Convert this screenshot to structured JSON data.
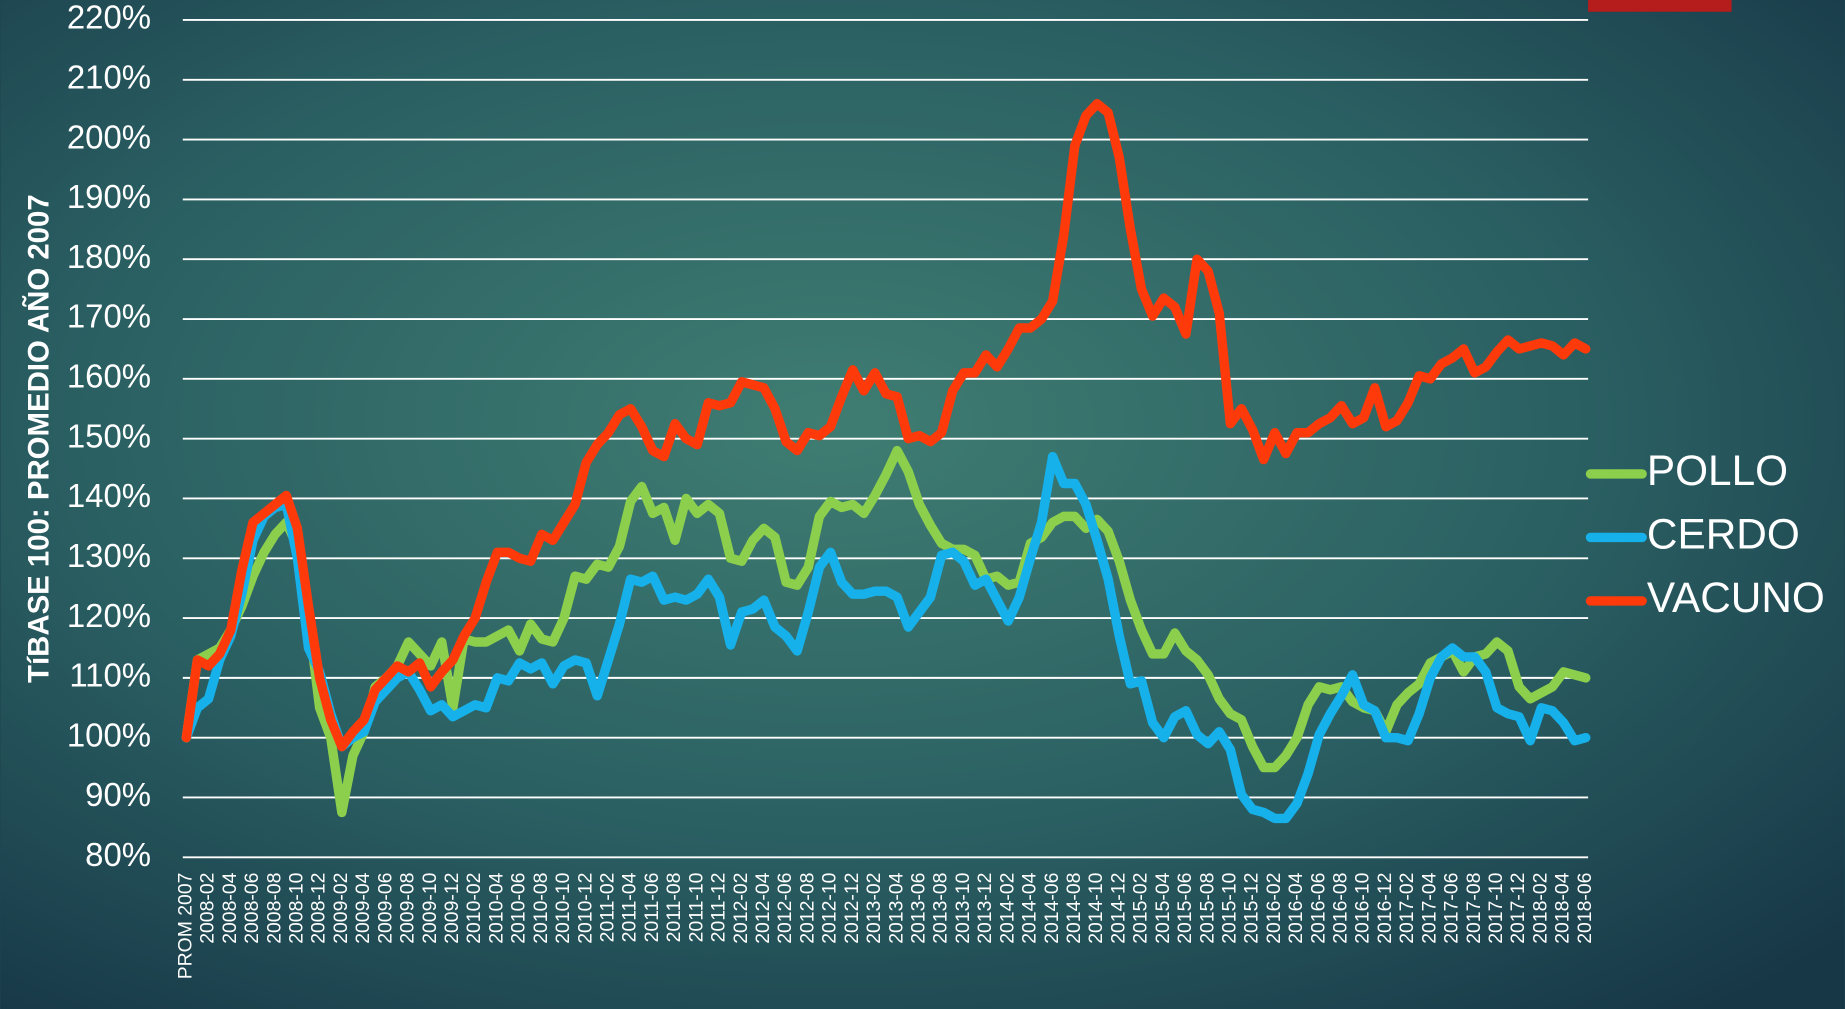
{
  "chart_data": {
    "type": "line",
    "ylabel": "TíBASE 100: PROMEDIO AÑO 2007",
    "categories": [
      "PROM 2007",
      null,
      "2008-02",
      null,
      "2008-04",
      null,
      "2008-06",
      null,
      "2008-08",
      null,
      "2008-10",
      null,
      "2008-12",
      null,
      "2009-02",
      null,
      "2009-04",
      null,
      "2009-06",
      null,
      "2009-08",
      null,
      "2009-10",
      null,
      "2009-12",
      null,
      "2010-02",
      null,
      "2010-04",
      null,
      "2010-06",
      null,
      "2010-08",
      null,
      "2010-10",
      null,
      "2010-12",
      null,
      "2011-02",
      null,
      "2011-04",
      null,
      "2011-06",
      null,
      "2011-08",
      null,
      "2011-10",
      null,
      "2011-12",
      null,
      "2012-02",
      null,
      "2012-04",
      null,
      "2012-06",
      null,
      "2012-08",
      null,
      "2012-10",
      null,
      "2012-12",
      null,
      "2013-02",
      null,
      "2013-04",
      null,
      "2013-06",
      null,
      "2013-08",
      null,
      "2013-10",
      null,
      "2013-12",
      null,
      "2014-02",
      null,
      "2014-04",
      null,
      "2014-06",
      null,
      "2014-08",
      null,
      "2014-10",
      null,
      "2014-12",
      null,
      "2015-02",
      null,
      "2015-04",
      null,
      "2015-06",
      null,
      "2015-08",
      null,
      "2015-10",
      null,
      "2015-12",
      null,
      "2016-02",
      null,
      "2016-04",
      null,
      "2016-06",
      null,
      "2016-08",
      null,
      "2016-10",
      null,
      "2016-12",
      null,
      "2017-02",
      null,
      "2017-04",
      null,
      "2017-06",
      null,
      "2017-08",
      null,
      "2017-10",
      null,
      "2017-12",
      null,
      "2018-02",
      null,
      "2018-04",
      null,
      "2018-06"
    ],
    "series": [
      {
        "name": "POLLO",
        "color": "#8ccf4d",
        "values": [
          100,
          113,
          114,
          115,
          118,
          122,
          127,
          131,
          134,
          136,
          132,
          120,
          105,
          100,
          87.5,
          97,
          101,
          108.5,
          110,
          112,
          116,
          114,
          112,
          116,
          105,
          116.5,
          116,
          116,
          117,
          118,
          114.5,
          119,
          116.5,
          116,
          120,
          127,
          126.5,
          129,
          128.5,
          132,
          139.5,
          142,
          137.5,
          138.5,
          133,
          140,
          137.5,
          139,
          137.5,
          130,
          129.5,
          133,
          135,
          133.5,
          126,
          125.5,
          128.5,
          137,
          139.5,
          138.5,
          139,
          137.5,
          140.5,
          144,
          148,
          144.5,
          139,
          135.5,
          132.5,
          131.5,
          131.5,
          130.5,
          126.5,
          127,
          125.5,
          126,
          132.5,
          133.5,
          136,
          137,
          137,
          135,
          136.5,
          134.5,
          129.5,
          123,
          118,
          114,
          114,
          117.5,
          114.5,
          113,
          110.5,
          106.5,
          104,
          103,
          98.5,
          95,
          95,
          97,
          100,
          105.5,
          108.5,
          108,
          108.5,
          106,
          105,
          104.5,
          101,
          105.5,
          107.5,
          109,
          112.5,
          113.5,
          114.5,
          111,
          113.5,
          114,
          116,
          114.5,
          108.5,
          106.5,
          107.5,
          108.5,
          111,
          110.5,
          110
        ]
      },
      {
        "name": "CERDO",
        "color": "#16b1ea",
        "values": [
          100,
          105,
          106.5,
          113,
          117,
          124,
          133,
          137,
          138.5,
          139,
          130,
          115,
          111,
          104,
          98.5,
          100,
          101,
          106,
          108,
          110,
          111,
          108,
          104.5,
          105.5,
          103.5,
          104.5,
          105.5,
          105,
          110,
          109.5,
          112.5,
          111.5,
          112.5,
          109,
          112,
          113,
          112.5,
          107,
          113,
          119,
          126.5,
          126,
          127,
          123,
          123.5,
          123,
          124,
          126.5,
          123.5,
          115.5,
          121,
          121.5,
          123,
          118.5,
          117,
          114.5,
          121,
          128.5,
          131,
          126,
          124,
          124,
          124.5,
          124.5,
          123.5,
          118.5,
          121,
          123.5,
          130.5,
          131,
          129.5,
          125.5,
          126.5,
          123,
          119.5,
          123.5,
          130,
          136,
          147,
          142.5,
          142.5,
          139,
          133,
          126.5,
          117,
          109,
          109.5,
          102.5,
          100,
          103.5,
          104.5,
          100.5,
          99,
          101,
          98,
          90.5,
          88,
          87.5,
          86.5,
          86.5,
          89,
          94,
          100.5,
          104,
          107,
          110.5,
          105.5,
          104.5,
          100,
          100,
          99.5,
          104,
          110,
          113.5,
          115,
          113.5,
          113.5,
          111,
          105,
          104,
          103.5,
          99.5,
          105,
          104.5,
          102.5,
          99.5,
          100
        ]
      },
      {
        "name": "VACUNO",
        "color": "#ff3a0a",
        "values": [
          100,
          113,
          112,
          114,
          118,
          128,
          136,
          137.5,
          139,
          140.5,
          135,
          122,
          110,
          103,
          98.5,
          101,
          103,
          108,
          110,
          112,
          111,
          112.5,
          108.5,
          111,
          113,
          117,
          120,
          126,
          131,
          131,
          130,
          129.5,
          134,
          133,
          136,
          139,
          146,
          149,
          151,
          154,
          155,
          152,
          148,
          147,
          152.5,
          150,
          149,
          156,
          155.5,
          156,
          159.5,
          159,
          158.5,
          155,
          149.5,
          148,
          151,
          150.5,
          152,
          157,
          161.5,
          158,
          161,
          157.5,
          157,
          150,
          150.5,
          149.5,
          151,
          158,
          161,
          161,
          164,
          162,
          165,
          168.5,
          168.5,
          170,
          173,
          184,
          199,
          204,
          206,
          204.5,
          197,
          185,
          175,
          170.5,
          173.5,
          172,
          167.5,
          180,
          178,
          171,
          152.5,
          155,
          151.5,
          146.5,
          151,
          147.5,
          151,
          151,
          152.5,
          153.5,
          155.5,
          152.5,
          153.5,
          158.5,
          152,
          153,
          156,
          160.5,
          160,
          162.5,
          163.5,
          165,
          161,
          162,
          164.5,
          166.5,
          165,
          165.5,
          166,
          165.5,
          164,
          166,
          165
        ]
      }
    ],
    "ylim": [
      80,
      220
    ],
    "yticks": [
      {
        "value": 80,
        "label": "80%"
      },
      {
        "value": 90,
        "label": "90%"
      },
      {
        "value": 100,
        "label": "100%"
      },
      {
        "value": 110,
        "label": "110%"
      },
      {
        "value": 120,
        "label": "120%"
      },
      {
        "value": 130,
        "label": "130%"
      },
      {
        "value": 140,
        "label": "140%"
      },
      {
        "value": 150,
        "label": "150%"
      },
      {
        "value": 160,
        "label": "160%"
      },
      {
        "value": 170,
        "label": "170%"
      },
      {
        "value": 180,
        "label": "180%"
      },
      {
        "value": 190,
        "label": "190%"
      },
      {
        "value": 200,
        "label": "200%"
      },
      {
        "value": 210,
        "label": "210%"
      },
      {
        "value": 220,
        "label": "220%"
      }
    ],
    "grid": true,
    "legend": "right"
  }
}
